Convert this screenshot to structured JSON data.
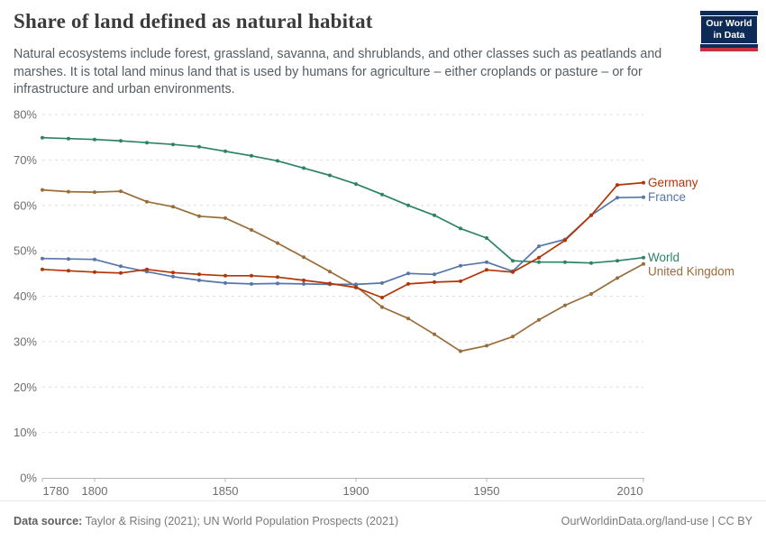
{
  "logo": {
    "line1": "Our World",
    "line2": "in Data",
    "bg_color": "#0d2b56",
    "stripe_color": "#c4333e"
  },
  "chart_data": {
    "type": "line",
    "title": "Share of land defined as natural habitat",
    "subtitle": "Natural ecosystems include forest, grassland, savanna, and shrublands, and other classes such as peatlands and marshes. It is total land minus land that is used by humans for agriculture – either croplands or pasture – or for infrastructure and urban environments.",
    "x": [
      1780,
      1790,
      1800,
      1810,
      1820,
      1830,
      1840,
      1850,
      1860,
      1870,
      1880,
      1890,
      1900,
      1910,
      1920,
      1930,
      1940,
      1950,
      1960,
      1970,
      1980,
      1990,
      2000,
      2010
    ],
    "series": [
      {
        "name": "World",
        "color": "#2C8465",
        "values": [
          74.9,
          74.7,
          74.5,
          74.2,
          73.8,
          73.4,
          72.9,
          71.9,
          70.9,
          69.8,
          68.2,
          66.6,
          64.7,
          62.4,
          60.0,
          57.8,
          54.9,
          52.8,
          47.8,
          47.5,
          47.5,
          47.3,
          47.8,
          48.5
        ]
      },
      {
        "name": "United Kingdom",
        "color": "#996D39",
        "values": [
          63.4,
          63.0,
          62.9,
          63.1,
          60.8,
          59.7,
          57.6,
          57.2,
          54.6,
          51.7,
          48.6,
          45.4,
          42.2,
          37.6,
          35.1,
          31.6,
          27.9,
          29.1,
          31.1,
          34.8,
          38.0,
          40.5,
          44.0,
          47.1
        ]
      },
      {
        "name": "France",
        "color": "#5676AA",
        "values": [
          48.3,
          48.2,
          48.1,
          46.6,
          45.4,
          44.3,
          43.5,
          42.9,
          42.7,
          42.8,
          42.7,
          42.6,
          42.6,
          42.9,
          45.0,
          44.8,
          46.7,
          47.5,
          45.5,
          51.0,
          52.5,
          57.8,
          61.7,
          61.8
        ]
      },
      {
        "name": "Germany",
        "color": "#B13507",
        "values": [
          45.9,
          45.6,
          45.3,
          45.1,
          45.9,
          45.2,
          44.8,
          44.5,
          44.5,
          44.2,
          43.5,
          42.8,
          41.9,
          39.7,
          42.7,
          43.1,
          43.3,
          45.8,
          45.3,
          48.5,
          52.3,
          57.8,
          64.5,
          65.0
        ]
      }
    ],
    "ylim": [
      0,
      80
    ],
    "yticks": [
      0,
      10,
      20,
      30,
      40,
      50,
      60,
      70,
      80
    ],
    "ytick_suffix": "%",
    "xticks": [
      1780,
      1800,
      1850,
      1900,
      1950,
      2010
    ],
    "xlabel": "",
    "ylabel": "",
    "grid": "horizontal-dashed",
    "legend_position": "right-end-labels"
  },
  "footer": {
    "source_label": "Data source:",
    "source_text": " Taylor & Rising (2021); UN World Population Prospects (2021)",
    "right_text": "OurWorldinData.org/land-use | CC BY"
  }
}
